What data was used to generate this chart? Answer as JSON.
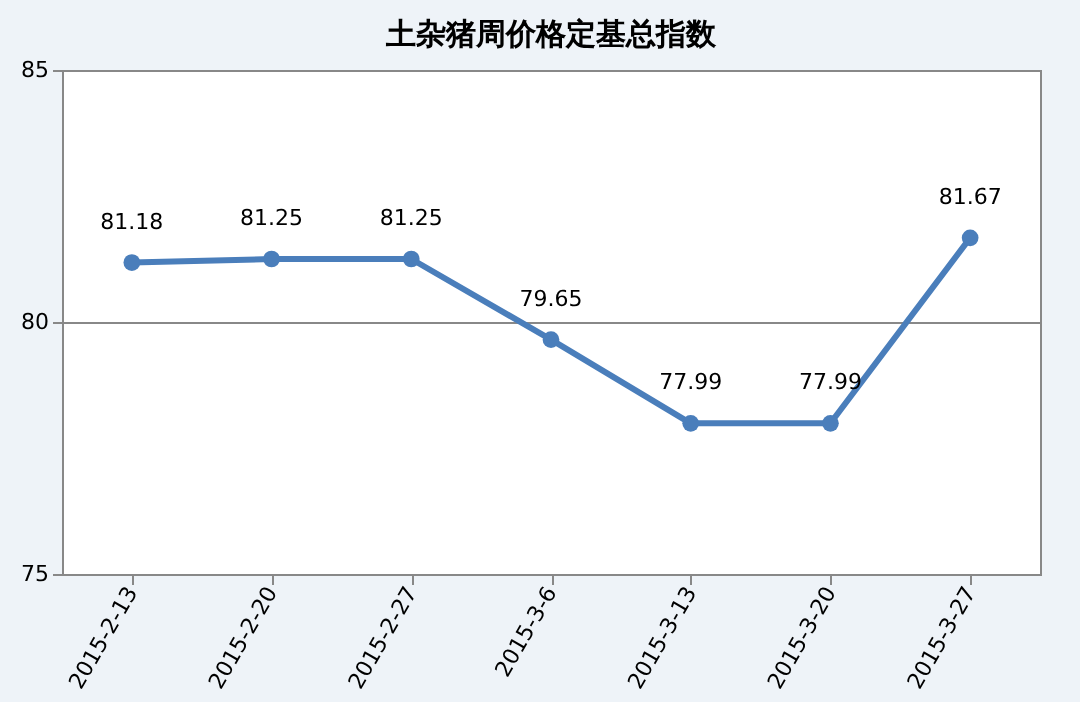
{
  "chart_data": {
    "type": "line",
    "title": "土杂猪周价格定基总指数",
    "categories": [
      "2015-2-13",
      "2015-2-20",
      "2015-2-27",
      "2015-3-6",
      "2015-3-13",
      "2015-3-20",
      "2015-3-27"
    ],
    "series": [
      {
        "color": "#4a7ebb",
        "values": [
          81.18,
          81.25,
          81.25,
          79.65,
          77.99,
          77.99,
          81.67
        ]
      }
    ],
    "ylim": [
      75,
      85
    ],
    "yticks": [
      75,
      80,
      85
    ],
    "grid": "y",
    "marker": "circle",
    "line_style": "solid",
    "data_labels": true,
    "legend": false
  }
}
